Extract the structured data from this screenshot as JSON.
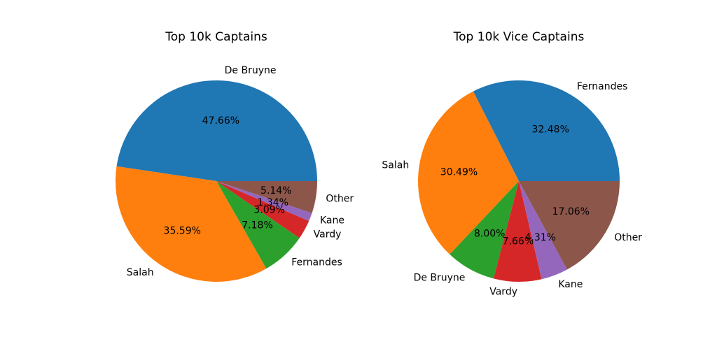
{
  "chart_data": [
    {
      "type": "pie",
      "title": "Top 10k Captains",
      "categories": [
        "De Bruyne",
        "Salah",
        "Fernandes",
        "Vardy",
        "Kane",
        "Other"
      ],
      "values": [
        47.66,
        35.59,
        7.18,
        3.09,
        1.34,
        5.14
      ],
      "value_labels": [
        "47.66%",
        "35.59%",
        "7.18%",
        "3.09%",
        "1.34%",
        "5.14%"
      ],
      "colors": [
        "#1f77b4",
        "#ff7f0e",
        "#2ca02c",
        "#d62728",
        "#9467bd",
        "#8c564b"
      ],
      "start_angle_deg": 0,
      "direction": "counterclockwise"
    },
    {
      "type": "pie",
      "title": "Top 10k Vice Captains",
      "categories": [
        "Fernandes",
        "Salah",
        "De Bruyne",
        "Vardy",
        "Kane",
        "Other"
      ],
      "values": [
        32.48,
        30.49,
        8.0,
        7.66,
        4.31,
        17.06
      ],
      "value_labels": [
        "32.48%",
        "30.49%",
        "8.00%",
        "7.66%",
        "4.31%",
        "17.06%"
      ],
      "colors": [
        "#1f77b4",
        "#ff7f0e",
        "#2ca02c",
        "#d62728",
        "#9467bd",
        "#8c564b"
      ],
      "start_angle_deg": 0,
      "direction": "counterclockwise"
    }
  ]
}
